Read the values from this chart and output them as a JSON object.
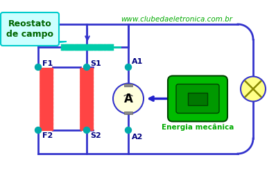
{
  "bg_color": "#ffffff",
  "wire_color": "#3333cc",
  "wire_lw": 2.0,
  "label_color": "#000080",
  "green_text": "#00aa00",
  "website": "www.clubedaeletronica.com.br",
  "callout_text": "Reostato\nde campo",
  "callout_bg": "#ccffff",
  "callout_border": "#00cccc",
  "energia_text": "Energia mecânica",
  "coil_color": "#00ccaa",
  "red_coil_color": "#ff4444",
  "node_color": "#00aaaa",
  "motor_green": "#00bb00",
  "lamp_yellow": "#ffff88",
  "arrow_blue": "#2222cc",
  "arrow_red": "#ff2222",
  "ammeter_bg": "#ffffdd",
  "gray_terminal": "#888888"
}
